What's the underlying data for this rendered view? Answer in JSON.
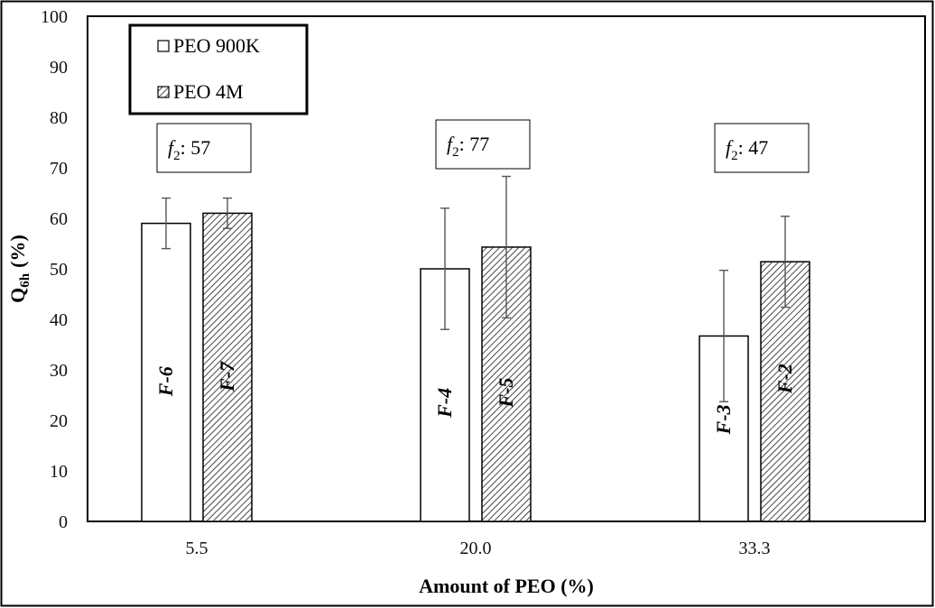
{
  "chart_data": {
    "type": "bar",
    "title": "",
    "xlabel": "Amount of PEO (%)",
    "ylabel_main": "Q",
    "ylabel_sub": "6h",
    "ylabel_unit": "(%)",
    "ylim": [
      0,
      100
    ],
    "yticks": [
      "0",
      "10",
      "20",
      "30",
      "40",
      "50",
      "60",
      "70",
      "80",
      "90",
      "100"
    ],
    "categories": [
      "5.5",
      "20.0",
      "33.3"
    ],
    "series": [
      {
        "name": "PEO 900K",
        "pattern": "empty",
        "values": [
          59,
          50,
          36.7
        ],
        "errors": [
          5,
          12,
          13
        ],
        "labels": [
          "F-6",
          "F-4",
          "F-3"
        ]
      },
      {
        "name": "PEO 4M",
        "pattern": "hatched",
        "values": [
          61,
          54.3,
          51.4
        ],
        "errors": [
          3,
          14,
          9
        ],
        "labels": [
          "F-7",
          "F-5",
          "F-2"
        ]
      }
    ],
    "annotations": [
      {
        "symbol": "f",
        "sub": "2",
        "text": ": 57"
      },
      {
        "symbol": "f",
        "sub": "2",
        "text": ": 77"
      },
      {
        "symbol": "f",
        "sub": "2",
        "text": ": 47"
      }
    ],
    "legend": {
      "position": "top-left"
    },
    "colors": {
      "bar_stroke": "#000000",
      "bar_fill": "#ffffff",
      "hatch": "#333333",
      "error_bar": "#555555"
    }
  }
}
